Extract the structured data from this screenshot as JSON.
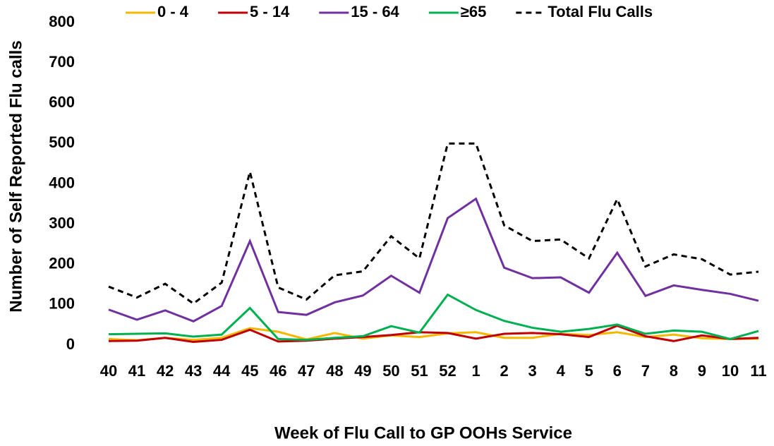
{
  "chart_data": {
    "type": "line",
    "x_label": "Week of Flu Call to GP OOHs Service",
    "y_label": "Number of Self Reported Flu calls",
    "categories": [
      "40",
      "41",
      "42",
      "43",
      "44",
      "45",
      "46",
      "47",
      "48",
      "49",
      "50",
      "51",
      "52",
      "1",
      "2",
      "3",
      "4",
      "5",
      "6",
      "7",
      "8",
      "9",
      "10",
      "11"
    ],
    "ylim": [
      0,
      800
    ],
    "yticks": [
      0,
      100,
      200,
      300,
      400,
      500,
      600,
      700,
      800
    ],
    "grid": false,
    "legend": "top",
    "series": [
      {
        "name": "0 - 4",
        "color": "#f5b800",
        "style": "solid",
        "values": [
          15,
          12,
          18,
          13,
          18,
          42,
          33,
          14,
          30,
          16,
          24,
          20,
          29,
          32,
          18,
          18,
          28,
          25,
          32,
          20,
          26,
          17,
          15,
          16
        ]
      },
      {
        "name": "5 - 14",
        "color": "#c00000",
        "style": "solid",
        "values": [
          10,
          11,
          18,
          8,
          13,
          38,
          9,
          11,
          16,
          20,
          25,
          32,
          30,
          16,
          28,
          30,
          27,
          20,
          48,
          22,
          10,
          24,
          15,
          18
        ]
      },
      {
        "name": "15 - 64",
        "color": "#7030a0",
        "style": "solid",
        "values": [
          88,
          63,
          86,
          59,
          97,
          258,
          82,
          75,
          106,
          123,
          172,
          130,
          315,
          363,
          192,
          166,
          168,
          130,
          229,
          122,
          148,
          137,
          127,
          110
        ]
      },
      {
        "name": "≥65",
        "color": "#00b050",
        "style": "solid",
        "values": [
          27,
          28,
          29,
          21,
          26,
          92,
          15,
          13,
          18,
          22,
          47,
          31,
          125,
          87,
          60,
          43,
          33,
          40,
          51,
          28,
          36,
          33,
          15,
          35
        ]
      },
      {
        "name": "Total Flu Calls",
        "color": "#000000",
        "style": "dashed",
        "values": [
          145,
          118,
          152,
          103,
          155,
          430,
          143,
          113,
          173,
          183,
          270,
          215,
          500,
          500,
          297,
          258,
          262,
          215,
          362,
          195,
          225,
          213,
          175,
          182
        ]
      }
    ]
  }
}
